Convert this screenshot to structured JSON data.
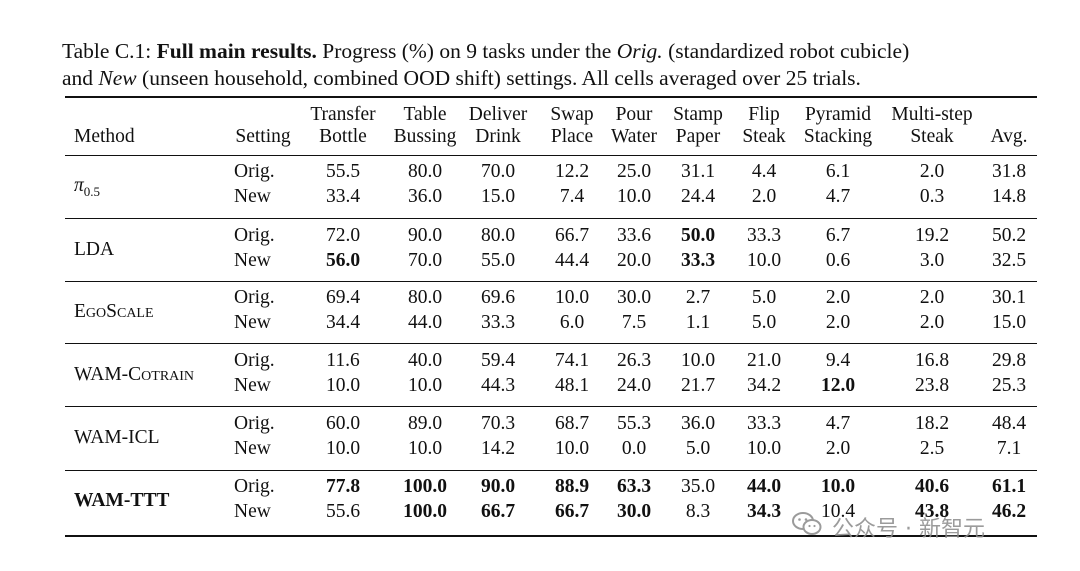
{
  "caption": {
    "label": "Table C.1:",
    "bold_title": "Full main results.",
    "seg1": "Progress (%) on 9 tasks under the",
    "orig_word": "Orig.",
    "seg2": "(standardized robot cubicle)",
    "new_word": "New",
    "seg3": "(unseen household, combined OOD shift) settings. All cells averaged over 25 trials.",
    "line2_prefix": "and"
  },
  "table": {
    "headers": [
      {
        "key": "method",
        "l1": "",
        "l2": "Method"
      },
      {
        "key": "setting",
        "l1": "",
        "l2": "Setting"
      },
      {
        "key": "transfer_bottle",
        "l1": "Transfer",
        "l2": "Bottle"
      },
      {
        "key": "table_bussing",
        "l1": "Table",
        "l2": "Bussing"
      },
      {
        "key": "deliver_drink",
        "l1": "Deliver",
        "l2": "Drink"
      },
      {
        "key": "swap_place",
        "l1": "Swap",
        "l2": "Place"
      },
      {
        "key": "pour_water",
        "l1": "Pour",
        "l2": "Water"
      },
      {
        "key": "stamp_paper",
        "l1": "Stamp",
        "l2": "Paper"
      },
      {
        "key": "flip_steak",
        "l1": "Flip",
        "l2": "Steak"
      },
      {
        "key": "pyramid_stacking",
        "l1": "Pyramid",
        "l2": "Stacking"
      },
      {
        "key": "multistep_steak",
        "l1": "Multi-step",
        "l2": "Steak"
      },
      {
        "key": "avg",
        "l1": "",
        "l2": "Avg."
      }
    ],
    "groups": [
      {
        "method": "π0.5",
        "method_base": "π",
        "method_sub": "0.5",
        "style": "math",
        "rows": [
          {
            "setting": "Orig.",
            "values": [
              "55.5",
              "80.0",
              "70.0",
              "12.2",
              "25.0",
              "31.1",
              "4.4",
              "6.1",
              "2.0",
              "31.8"
            ],
            "bold": []
          },
          {
            "setting": "New",
            "values": [
              "33.4",
              "36.0",
              "15.0",
              "7.4",
              "10.0",
              "24.4",
              "2.0",
              "4.7",
              "0.3",
              "14.8"
            ],
            "bold": []
          }
        ]
      },
      {
        "method": "LDA",
        "style": "plain",
        "rows": [
          {
            "setting": "Orig.",
            "values": [
              "72.0",
              "90.0",
              "80.0",
              "66.7",
              "33.6",
              "50.0",
              "33.3",
              "6.7",
              "19.2",
              "50.2"
            ],
            "bold": [
              5
            ]
          },
          {
            "setting": "New",
            "values": [
              "56.0",
              "70.0",
              "55.0",
              "44.4",
              "20.0",
              "33.3",
              "10.0",
              "0.6",
              "3.0",
              "32.5"
            ],
            "bold": [
              0,
              5
            ]
          }
        ]
      },
      {
        "method": "EgoScale",
        "style": "smallcaps",
        "rows": [
          {
            "setting": "Orig.",
            "values": [
              "69.4",
              "80.0",
              "69.6",
              "10.0",
              "30.0",
              "2.7",
              "5.0",
              "2.0",
              "2.0",
              "30.1"
            ],
            "bold": []
          },
          {
            "setting": "New",
            "values": [
              "34.4",
              "44.0",
              "33.3",
              "6.0",
              "7.5",
              "1.1",
              "5.0",
              "2.0",
              "2.0",
              "15.0"
            ],
            "bold": []
          }
        ]
      },
      {
        "method": "WAM-Cotrain",
        "style": "smallcaps",
        "rows": [
          {
            "setting": "Orig.",
            "values": [
              "11.6",
              "40.0",
              "59.4",
              "74.1",
              "26.3",
              "10.0",
              "21.0",
              "9.4",
              "16.8",
              "29.8"
            ],
            "bold": []
          },
          {
            "setting": "New",
            "values": [
              "10.0",
              "10.0",
              "44.3",
              "48.1",
              "24.0",
              "21.7",
              "34.2",
              "12.0",
              "23.8",
              "25.3"
            ],
            "bold": [
              7
            ]
          }
        ]
      },
      {
        "method": "WAM-ICL",
        "style": "plain",
        "rows": [
          {
            "setting": "Orig.",
            "values": [
              "60.0",
              "89.0",
              "70.3",
              "68.7",
              "55.3",
              "36.0",
              "33.3",
              "4.7",
              "18.2",
              "48.4"
            ],
            "bold": []
          },
          {
            "setting": "New",
            "values": [
              "10.0",
              "10.0",
              "14.2",
              "10.0",
              "0.0",
              "5.0",
              "10.0",
              "2.0",
              "2.5",
              "7.1"
            ],
            "bold": []
          }
        ]
      },
      {
        "method": "WAM-TTT",
        "style": "bold",
        "rows": [
          {
            "setting": "Orig.",
            "values": [
              "77.8",
              "100.0",
              "90.0",
              "88.9",
              "63.3",
              "35.0",
              "44.0",
              "10.0",
              "40.6",
              "61.1"
            ],
            "bold": [
              0,
              1,
              2,
              3,
              4,
              6,
              7,
              8,
              9
            ]
          },
          {
            "setting": "New",
            "values": [
              "55.6",
              "100.0",
              "66.7",
              "66.7",
              "30.0",
              "8.3",
              "34.3",
              "10.4",
              "43.8",
              "46.2"
            ],
            "bold": [
              1,
              2,
              3,
              4,
              6,
              8,
              9
            ]
          }
        ]
      }
    ]
  },
  "watermark": {
    "text": "公众号 · 新智元",
    "icon": "wechat-icon"
  }
}
